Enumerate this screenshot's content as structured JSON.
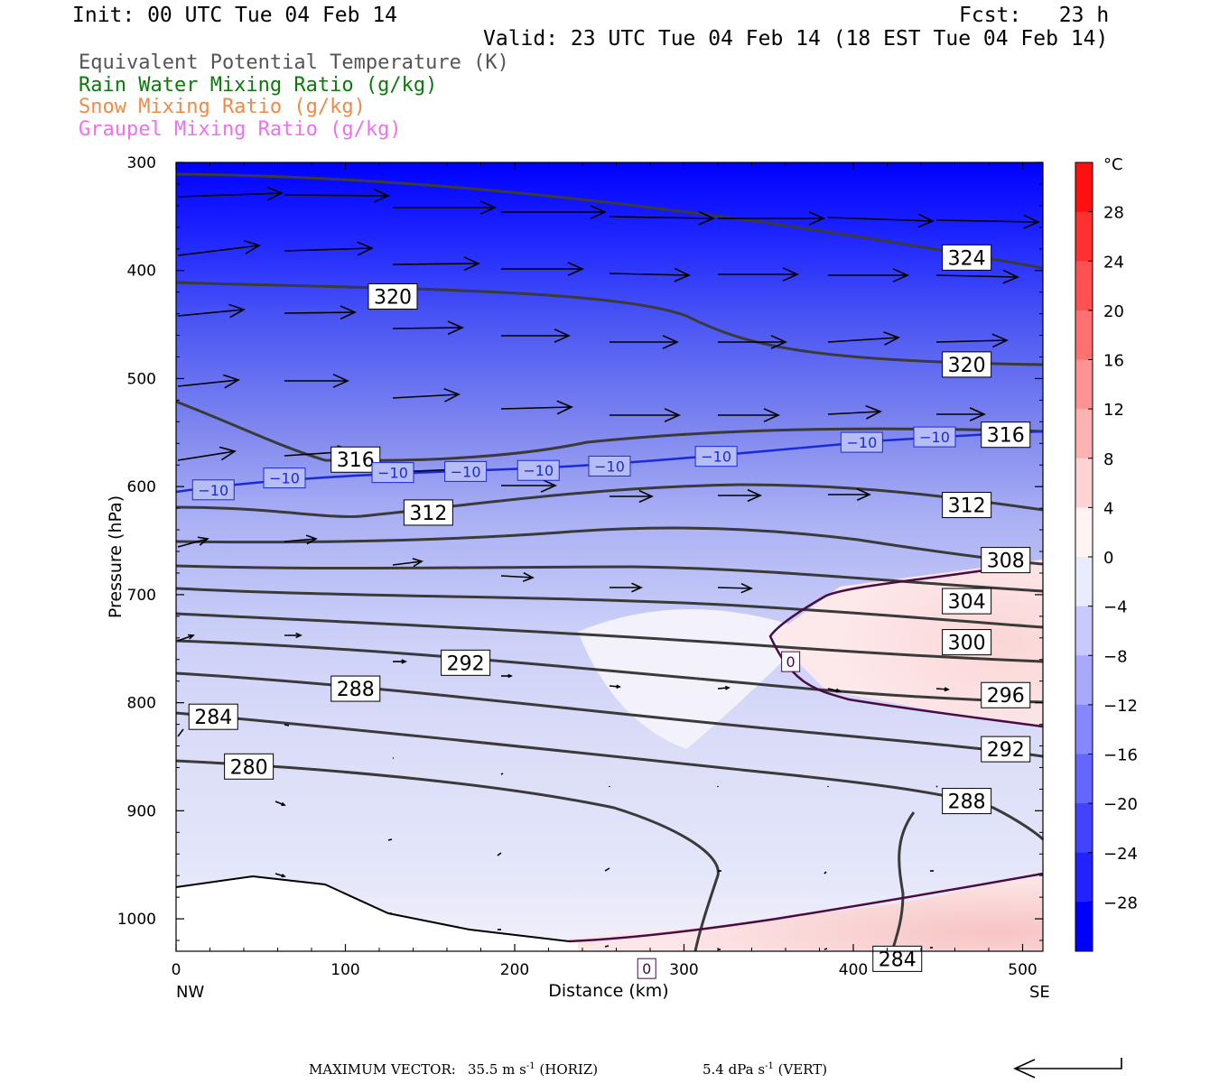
{
  "header": {
    "init": "Init: 00 UTC Tue 04 Feb 14",
    "fcst": "Fcst:   23 h",
    "valid": "Valid: 23 UTC Tue 04 Feb 14 (18 EST Tue 04 Feb 14)"
  },
  "fields": [
    {
      "label": "Equivalent Potential Temperature (K)",
      "color": "#555555"
    },
    {
      "label": "Rain Water Mixing Ratio (g/kg)",
      "color": "#0a7a0a"
    },
    {
      "label": "Snow Mixing Ratio (g/kg)",
      "color": "#f08a4a"
    },
    {
      "label": "Graupel Mixing Ratio (g/kg)",
      "color": "#ee70ee"
    }
  ],
  "footer": {
    "label": "MAXIMUM VECTOR:",
    "horiz": "35.5 m s",
    "horiz_exp": "-1",
    "horiz_tag": "(HORIZ)",
    "vert": "5.4 dPa s",
    "vert_exp": "-1",
    "vert_tag": "(VERT)"
  },
  "chart_data": {
    "type": "contour",
    "xlabel": "Distance (km)",
    "ylabel": "Pressure (hPa)",
    "xlim": [
      0,
      512
    ],
    "ylim": [
      1030,
      300
    ],
    "x_ticks": [
      0,
      100,
      200,
      300,
      400,
      500
    ],
    "y_ticks": [
      300,
      400,
      500,
      600,
      700,
      800,
      900,
      1000
    ],
    "x_endpoints": {
      "left": "NW",
      "right": "SE"
    },
    "colorbar": {
      "unit": "°C",
      "levels": [
        28,
        24,
        20,
        16,
        12,
        8,
        4,
        0,
        -4,
        -8,
        -12,
        -16,
        -20,
        -24,
        -28
      ],
      "warm_color": "#ff1010",
      "cold_color": "#0000ff"
    },
    "theta_e_labels": [
      {
        "v": "324",
        "x": 467,
        "p": 388
      },
      {
        "v": "320",
        "x": 128,
        "p": 424
      },
      {
        "v": "320",
        "x": 467,
        "p": 487
      },
      {
        "v": "316",
        "x": 106,
        "p": 575
      },
      {
        "v": "316",
        "x": 490,
        "p": 552
      },
      {
        "v": "312",
        "x": 149,
        "p": 624
      },
      {
        "v": "312",
        "x": 467,
        "p": 617
      },
      {
        "v": "308",
        "x": 490,
        "p": 668
      },
      {
        "v": "304",
        "x": 467,
        "p": 706
      },
      {
        "v": "300",
        "x": 467,
        "p": 744
      },
      {
        "v": "296",
        "x": 490,
        "p": 793
      },
      {
        "v": "292",
        "x": 171,
        "p": 763
      },
      {
        "v": "292",
        "x": 490,
        "p": 843
      },
      {
        "v": "288",
        "x": 106,
        "p": 787
      },
      {
        "v": "288",
        "x": 467,
        "p": 891
      },
      {
        "v": "284",
        "x": 22,
        "p": 813
      },
      {
        "v": "284",
        "x": 426,
        "p": 1037
      },
      {
        "v": "280",
        "x": 43,
        "p": 859
      }
    ],
    "isotherm_labels": [
      {
        "v": "−10",
        "x": 22,
        "p": 603
      },
      {
        "v": "−10",
        "x": 64,
        "p": 592
      },
      {
        "v": "−10",
        "x": 128,
        "p": 587
      },
      {
        "v": "−10",
        "x": 171,
        "p": 586
      },
      {
        "v": "−10",
        "x": 214,
        "p": 585
      },
      {
        "v": "−10",
        "x": 256,
        "p": 581
      },
      {
        "v": "−10",
        "x": 319,
        "p": 572
      },
      {
        "v": "−10",
        "x": 405,
        "p": 559
      },
      {
        "v": "−10",
        "x": 448,
        "p": 554
      },
      {
        "v": "0",
        "x": 363,
        "p": 762
      },
      {
        "v": "0",
        "x": 278,
        "p": 1046
      }
    ]
  }
}
